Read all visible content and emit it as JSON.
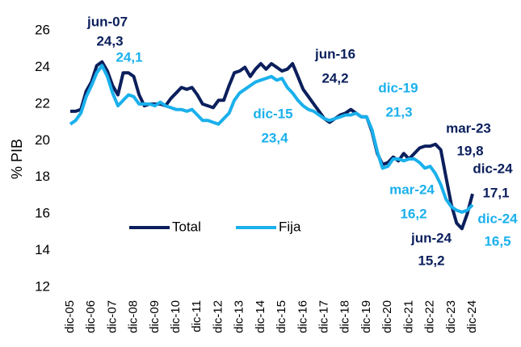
{
  "chart_data": {
    "type": "line",
    "y_label": "% PIB",
    "categories": [
      "dic-05",
      null,
      null,
      null,
      "dic-06",
      null,
      null,
      null,
      "dic-07",
      null,
      null,
      null,
      "dic-08",
      null,
      null,
      null,
      "dic-09",
      null,
      null,
      null,
      "dic-10",
      null,
      null,
      null,
      "dic-11",
      null,
      null,
      null,
      "dic-12",
      null,
      null,
      null,
      "dic-13",
      null,
      null,
      null,
      "dic-14",
      null,
      null,
      null,
      "dic-15",
      null,
      null,
      null,
      "dic-16",
      null,
      null,
      null,
      "dic-17",
      null,
      null,
      null,
      "dic-18",
      null,
      null,
      null,
      "dic-19",
      null,
      null,
      null,
      "dic-20",
      null,
      null,
      null,
      "dic-21",
      null,
      null,
      null,
      "dic-22",
      null,
      null,
      null,
      "dic-23",
      null,
      null,
      null,
      "dic-24"
    ],
    "series": [
      {
        "name": "Total",
        "color": "#0b1f5c",
        "values": [
          21.6,
          21.6,
          21.7,
          22.7,
          23.2,
          24.1,
          24.3,
          23.8,
          23.0,
          22.5,
          23.7,
          23.7,
          23.5,
          22.5,
          21.9,
          22.0,
          22.0,
          22.0,
          21.9,
          22.3,
          22.6,
          22.9,
          22.8,
          22.9,
          22.5,
          22.0,
          21.9,
          21.8,
          22.2,
          22.2,
          23.0,
          23.7,
          23.8,
          24.0,
          23.5,
          23.9,
          24.2,
          23.9,
          24.2,
          24.0,
          23.8,
          23.9,
          24.2,
          23.5,
          22.8,
          22.4,
          22.0,
          21.6,
          21.2,
          21.0,
          21.2,
          21.4,
          21.5,
          21.7,
          21.5,
          21.3,
          21.3,
          20.5,
          19.3,
          18.7,
          18.8,
          19.1,
          18.9,
          19.3,
          19.0,
          19.3,
          19.6,
          19.7,
          19.7,
          19.8,
          19.5,
          18.0,
          16.5,
          15.5,
          15.2,
          16.0,
          17.1
        ]
      },
      {
        "name": "Fija",
        "color": "#1ab0ec",
        "values": [
          20.9,
          21.1,
          21.5,
          22.4,
          23.0,
          23.7,
          24.1,
          23.5,
          22.6,
          21.9,
          22.2,
          22.5,
          22.4,
          22.0,
          22.0,
          22.0,
          21.9,
          22.1,
          21.9,
          21.8,
          21.7,
          21.7,
          21.6,
          21.7,
          21.4,
          21.1,
          21.1,
          21.0,
          20.9,
          21.2,
          21.5,
          22.2,
          22.6,
          22.8,
          23.0,
          23.2,
          23.3,
          23.4,
          23.5,
          23.3,
          23.4,
          22.9,
          22.6,
          22.2,
          21.9,
          21.7,
          21.6,
          21.4,
          21.2,
          21.1,
          21.2,
          21.3,
          21.4,
          21.4,
          21.5,
          21.3,
          21.3,
          20.6,
          19.4,
          18.5,
          18.6,
          19.0,
          19.0,
          18.9,
          19.0,
          19.0,
          18.8,
          18.5,
          18.6,
          18.2,
          17.6,
          16.8,
          16.4,
          16.2,
          16.1,
          16.2,
          16.5
        ]
      }
    ],
    "ylim": [
      12,
      26
    ],
    "yticks": [
      12,
      14,
      16,
      18,
      20,
      22,
      24,
      26
    ],
    "annotations": [
      "jun-07",
      "24,3",
      "24,1",
      "jun-16",
      "24,2",
      "dic-15",
      "23,4",
      "dic-19",
      "21,3",
      "mar-23",
      "19,8",
      "dic-24",
      "17,1",
      "mar-24",
      "16,2",
      "jun-24",
      "15,2",
      "dic-24",
      "16,5"
    ]
  }
}
